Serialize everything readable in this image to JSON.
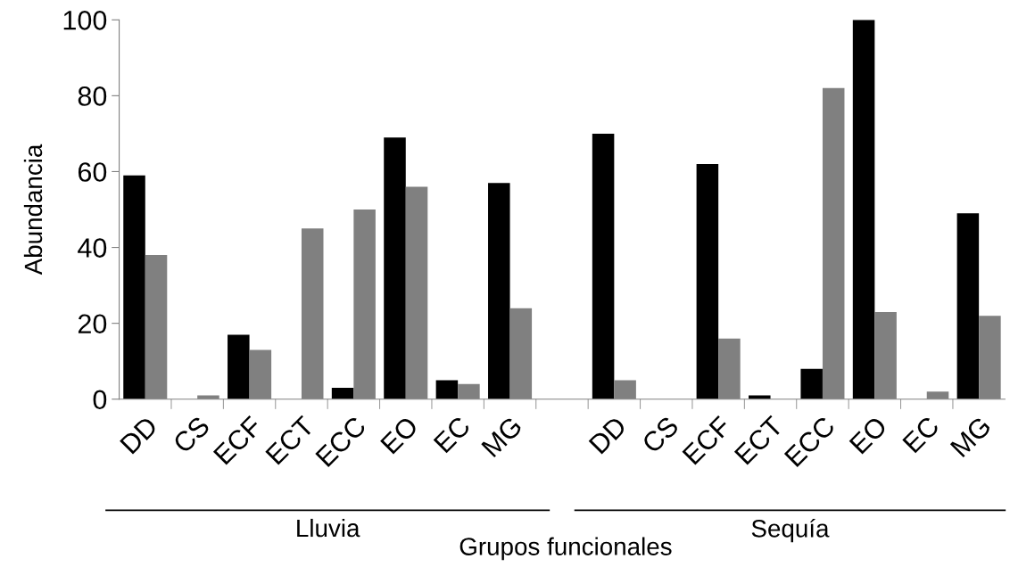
{
  "chart_data": {
    "type": "bar",
    "xlabel": "Grupos funcionales",
    "ylabel": "Abundancia",
    "categories": [
      "DD",
      "CS",
      "ECF",
      "ECT",
      "ECC",
      "EO",
      "EC",
      "MG",
      null,
      "DD",
      "CS",
      "ECF",
      "ECT",
      "ECC",
      "EO",
      "EC",
      "MG"
    ],
    "series": [
      {
        "color": "#000000",
        "values": [
          59,
          0,
          17,
          0,
          3,
          69,
          5,
          57,
          null,
          70,
          0,
          62,
          1,
          8,
          100,
          0,
          49
        ]
      },
      {
        "color": "#808080",
        "values": [
          38,
          1,
          13,
          45,
          50,
          56,
          4,
          24,
          null,
          5,
          0,
          16,
          0,
          82,
          23,
          2,
          22
        ]
      }
    ],
    "ylim": [
      0,
      100
    ],
    "yticks": [
      0,
      20,
      40,
      60,
      80,
      100
    ],
    "grid": false,
    "legend": false,
    "annotations": [
      "Lluvia",
      "Sequía"
    ]
  }
}
